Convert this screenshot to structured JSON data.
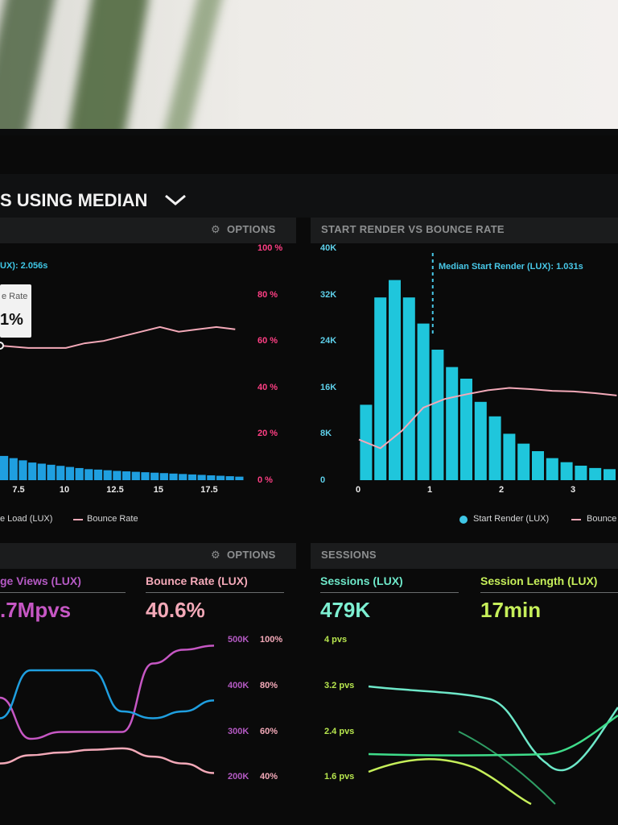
{
  "header": {
    "title": "S USING MEDIAN"
  },
  "panel_tl": {
    "options_label": "OPTIONS",
    "median_label": "UX): 2.056s",
    "tooltip_label": "e Rate",
    "tooltip_value": "1%",
    "legend_a": "e Load (LUX)",
    "legend_b": "Bounce Rate"
  },
  "panel_tr": {
    "title": "START RENDER VS BOUNCE RATE",
    "median_label": "Median Start Render (LUX): 1.031s",
    "legend_a": "Start Render (LUX)",
    "legend_b": "Bounce"
  },
  "panel_bl": {
    "options_label": "OPTIONS",
    "metric_a_label": "ge Views (LUX)",
    "metric_a_value": ".7Mpvs",
    "metric_b_label": "Bounce Rate (LUX)",
    "metric_b_value": "40.6%"
  },
  "panel_br": {
    "title": "SESSIONS",
    "metric_a_label": "Sessions (LUX)",
    "metric_a_value": "479K",
    "metric_b_label": "Session Length (LUX)",
    "metric_b_value": "17min"
  },
  "colors": {
    "cyan": "#1fc6dc",
    "pink": "#f3a9b8",
    "magenta": "#c657c4",
    "blue": "#1f9fe0",
    "teal": "#6ee8c9",
    "lime": "#c6ef5a",
    "green": "#3fdc8a"
  },
  "chart_data": [
    {
      "type": "bar",
      "title": "",
      "x_ticks": [
        "7.5",
        "10",
        "12.5",
        "15",
        "17.5"
      ],
      "y_right_ticks": [
        "0 %",
        "20 %",
        "40 %",
        "60 %",
        "80 %",
        "100 %"
      ],
      "series": [
        {
          "name": "e Load (LUX)",
          "type": "bar",
          "x": [
            6.5,
            7,
            7.5,
            8,
            8.5,
            9,
            9.5,
            10,
            10.5,
            11,
            11.5,
            12,
            12.5,
            13,
            13.5,
            14,
            14.5,
            15,
            15.5,
            16,
            16.5,
            17,
            17.5,
            18,
            18.5,
            19
          ],
          "values": [
            11,
            10,
            9,
            8,
            7.5,
            7,
            6.5,
            6,
            5.5,
            5,
            4.8,
            4.5,
            4.2,
            4,
            3.8,
            3.6,
            3.4,
            3.2,
            3,
            2.8,
            2.6,
            2.4,
            2.2,
            2,
            1.8,
            1.6
          ]
        },
        {
          "name": "Bounce Rate",
          "type": "line",
          "x": [
            6.5,
            8,
            9,
            10,
            11,
            12,
            13,
            14,
            15,
            16,
            17,
            18,
            19
          ],
          "values": [
            58,
            57,
            57,
            57,
            59,
            60,
            62,
            64,
            66,
            64,
            65,
            66,
            65
          ]
        }
      ]
    },
    {
      "type": "bar",
      "title": "START RENDER VS BOUNCE RATE",
      "x_ticks": [
        "0",
        "1",
        "2",
        "3"
      ],
      "y_left_ticks": [
        "0",
        "8K",
        "16K",
        "24K",
        "32K",
        "40K"
      ],
      "ylim": [
        0,
        40000
      ],
      "series": [
        {
          "name": "Start Render (LUX)",
          "type": "bar",
          "x": [
            0.1,
            0.3,
            0.5,
            0.7,
            0.9,
            1.1,
            1.3,
            1.5,
            1.7,
            1.9,
            2.1,
            2.3,
            2.5,
            2.7,
            2.9,
            3.1,
            3.3,
            3.5
          ],
          "values": [
            13000,
            31500,
            34500,
            31500,
            27000,
            22500,
            19500,
            17500,
            13500,
            11000,
            8000,
            6300,
            5000,
            3800,
            3100,
            2500,
            2100,
            1900
          ]
        },
        {
          "name": "Bounce",
          "type": "line",
          "x": [
            0,
            0.3,
            0.6,
            0.9,
            1.2,
            1.5,
            1.8,
            2.1,
            2.4,
            2.7,
            3,
            3.3,
            3.6
          ],
          "values": [
            7000,
            5500,
            8500,
            12500,
            14000,
            14800,
            15500,
            15900,
            15700,
            15400,
            15300,
            15000,
            14600
          ]
        }
      ],
      "median_x": 1.031
    },
    {
      "type": "line",
      "y_left_ticks": [
        "500K",
        "400K",
        "300K",
        "200K"
      ],
      "y_right_ticks": [
        "100%",
        "80%",
        "60%",
        "40%"
      ],
      "series": [
        {
          "name": "ge Views (LUX)",
          "values": [
            0.6,
            0.3,
            0.35,
            0.35,
            0.35,
            0.85,
            0.95,
            0.98
          ]
        },
        {
          "name": "Bounce Rate (LUX)",
          "values": [
            0.45,
            0.8,
            0.8,
            0.8,
            0.5,
            0.45,
            0.5,
            0.58
          ]
        }
      ]
    },
    {
      "type": "line",
      "y_left_ticks": [
        "4 pvs",
        "3.2 pvs",
        "2.4 pvs",
        "1.6 pvs"
      ]
    }
  ]
}
